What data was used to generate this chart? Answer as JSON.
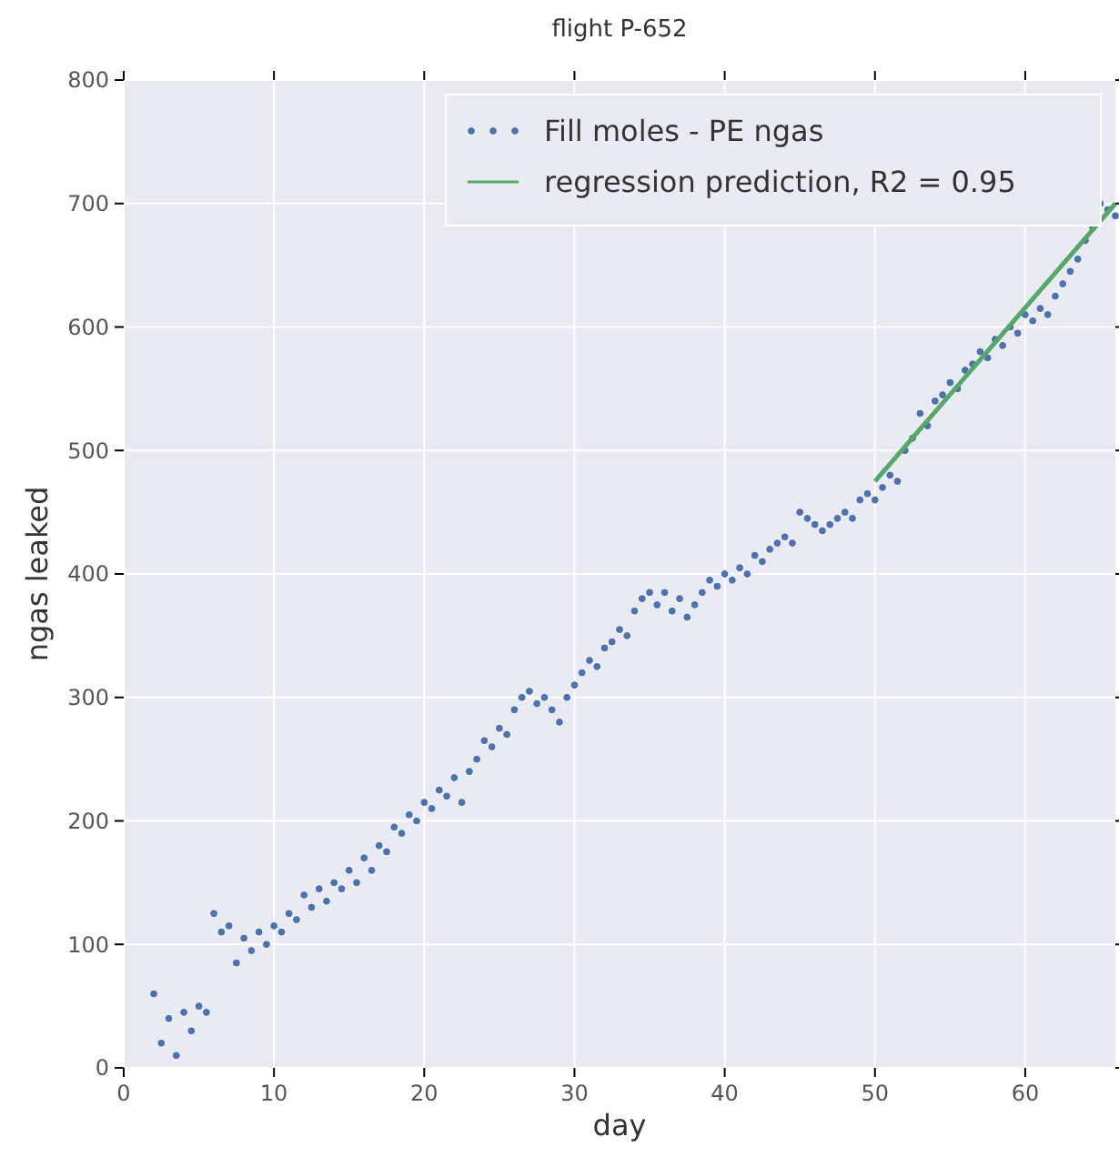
{
  "chart_data": {
    "type": "scatter",
    "title": "flight P-652",
    "xlabel": "day",
    "ylabel": "ngas leaked",
    "xlim": [
      0,
      66
    ],
    "xticks": [
      0,
      10,
      20,
      30,
      40,
      50,
      60
    ],
    "ylim": [
      0,
      800
    ],
    "yticks": [
      0,
      100,
      200,
      300,
      400,
      500,
      600,
      700,
      800
    ],
    "grid": true,
    "legend": "top right",
    "series": [
      {
        "name": "Fill moles - PE ngas",
        "marker": "circle",
        "color": "#4c72b0",
        "x": [
          2,
          2.5,
          3,
          3.5,
          4,
          4.5,
          5,
          5.5,
          6,
          6.5,
          7,
          7.5,
          8,
          8.5,
          9,
          9.5,
          10,
          10.5,
          11,
          11.5,
          12,
          12.5,
          13,
          13.5,
          14,
          14.5,
          15,
          15.5,
          16,
          16.5,
          17,
          17.5,
          18,
          18.5,
          19,
          19.5,
          20,
          20.5,
          21,
          21.5,
          22,
          22.5,
          23,
          23.5,
          24,
          24.5,
          25,
          25.5,
          26,
          26.5,
          27,
          27.5,
          28,
          28.5,
          29,
          29.5,
          30,
          30.5,
          31,
          31.5,
          32,
          32.5,
          33,
          33.5,
          34,
          34.5,
          35,
          35.5,
          36,
          36.5,
          37,
          37.5,
          38,
          38.5,
          39,
          39.5,
          40,
          40.5,
          41,
          41.5,
          42,
          42.5,
          43,
          43.5,
          44,
          44.5,
          45,
          45.5,
          46,
          46.5,
          47,
          47.5,
          48,
          48.5,
          49,
          49.5,
          50,
          50.5,
          51,
          51.5,
          52,
          52.5,
          53,
          53.5,
          54,
          54.5,
          55,
          55.5,
          56,
          56.5,
          57,
          57.5,
          58,
          58.5,
          59,
          59.5,
          60,
          60.5,
          61,
          61.5,
          62,
          62.5,
          63,
          63.5,
          64,
          64.5,
          65,
          65.5,
          66
        ],
        "values": [
          60,
          20,
          40,
          10,
          45,
          30,
          50,
          45,
          125,
          110,
          115,
          85,
          105,
          95,
          110,
          100,
          115,
          110,
          125,
          120,
          140,
          130,
          145,
          135,
          150,
          145,
          160,
          150,
          170,
          160,
          180,
          175,
          195,
          190,
          205,
          200,
          215,
          210,
          225,
          220,
          235,
          215,
          240,
          250,
          265,
          260,
          275,
          270,
          290,
          300,
          305,
          295,
          300,
          290,
          280,
          300,
          310,
          320,
          330,
          325,
          340,
          345,
          355,
          350,
          370,
          380,
          385,
          375,
          385,
          370,
          380,
          365,
          375,
          385,
          395,
          390,
          400,
          395,
          405,
          400,
          415,
          410,
          420,
          425,
          430,
          425,
          450,
          445,
          440,
          435,
          440,
          445,
          450,
          445,
          460,
          465,
          460,
          470,
          480,
          475,
          500,
          510,
          530,
          520,
          540,
          545,
          555,
          550,
          565,
          570,
          580,
          575,
          590,
          585,
          600,
          595,
          610,
          605,
          615,
          610,
          625,
          635,
          645,
          655,
          670,
          680,
          700,
          695,
          690
        ]
      },
      {
        "name": "regression prediction, R2 = 0.95",
        "type": "line",
        "color": "#55a868",
        "x": [
          50,
          66
        ],
        "values": [
          475,
          700
        ]
      }
    ]
  }
}
